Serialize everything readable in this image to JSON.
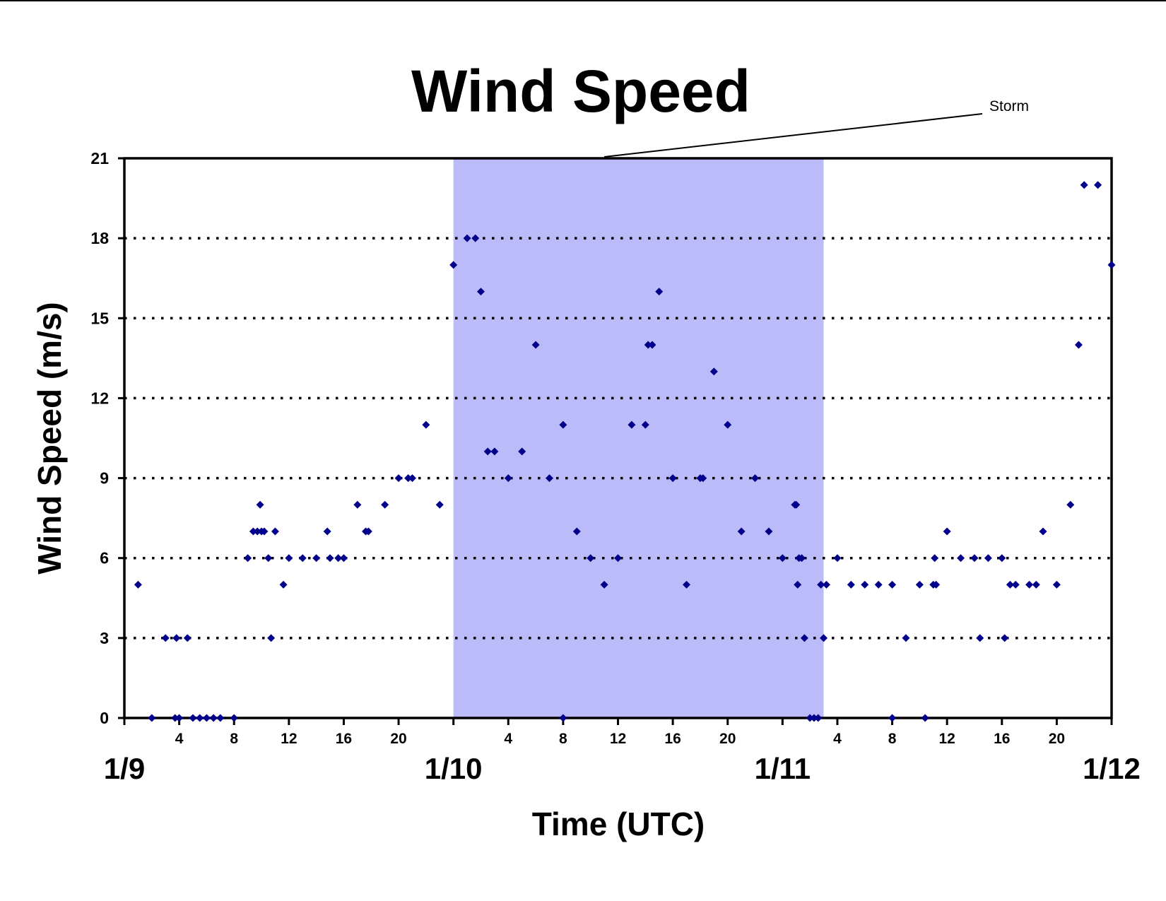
{
  "chart_data": {
    "type": "scatter",
    "title": "Wind Speed",
    "xlabel": "Time (UTC)",
    "ylabel": "Wind Speed (m/s)",
    "xlim": [
      0,
      72
    ],
    "ylim": [
      0,
      21
    ],
    "y_ticks": [
      0,
      3,
      6,
      9,
      12,
      15,
      18,
      21
    ],
    "y_tick_labels": [
      "0",
      "3",
      "6",
      "9",
      "12",
      "15",
      "18",
      "21"
    ],
    "grid": "horizontal dotted",
    "hour_ticks": [
      {
        "x": 4,
        "label": "4"
      },
      {
        "x": 8,
        "label": "8"
      },
      {
        "x": 12,
        "label": "12"
      },
      {
        "x": 16,
        "label": "16"
      },
      {
        "x": 20,
        "label": "20"
      },
      {
        "x": 28,
        "label": "4"
      },
      {
        "x": 32,
        "label": "8"
      },
      {
        "x": 36,
        "label": "12"
      },
      {
        "x": 40,
        "label": "16"
      },
      {
        "x": 44,
        "label": "20"
      },
      {
        "x": 52,
        "label": "4"
      },
      {
        "x": 56,
        "label": "8"
      },
      {
        "x": 60,
        "label": "12"
      },
      {
        "x": 64,
        "label": "16"
      },
      {
        "x": 68,
        "label": "20"
      }
    ],
    "date_ticks": [
      {
        "x": 0,
        "label": "1/9"
      },
      {
        "x": 24,
        "label": "1/10"
      },
      {
        "x": 48,
        "label": "1/11"
      },
      {
        "x": 72,
        "label": "1/12"
      }
    ],
    "shaded_region": {
      "x_start": 24,
      "x_end": 51,
      "color": "#bbbbf9",
      "label": "Storm"
    },
    "marker_color": "#00008b",
    "series": [
      {
        "points": [
          [
            1,
            5
          ],
          [
            2,
            0
          ],
          [
            3,
            3
          ],
          [
            3.7,
            0
          ],
          [
            3.8,
            3
          ],
          [
            4,
            0
          ],
          [
            4.6,
            3
          ],
          [
            5,
            0
          ],
          [
            5.5,
            0
          ],
          [
            6,
            0
          ],
          [
            6.5,
            0
          ],
          [
            7,
            0
          ],
          [
            8,
            0
          ],
          [
            9,
            6
          ],
          [
            9.4,
            7
          ],
          [
            9.7,
            7
          ],
          [
            9.9,
            8
          ],
          [
            10,
            7
          ],
          [
            10.2,
            7
          ],
          [
            10.5,
            6
          ],
          [
            10.7,
            3
          ],
          [
            11,
            7
          ],
          [
            11.6,
            5
          ],
          [
            12,
            6
          ],
          [
            13,
            6
          ],
          [
            14,
            6
          ],
          [
            14.8,
            7
          ],
          [
            15,
            6
          ],
          [
            15.6,
            6
          ],
          [
            16,
            6
          ],
          [
            17,
            8
          ],
          [
            17.6,
            7
          ],
          [
            17.8,
            7
          ],
          [
            19,
            8
          ],
          [
            20,
            9
          ],
          [
            20.7,
            9
          ],
          [
            21,
            9
          ],
          [
            22,
            11
          ],
          [
            23,
            8
          ],
          [
            24,
            17
          ],
          [
            25,
            18
          ],
          [
            25.6,
            18
          ],
          [
            26,
            16
          ],
          [
            26.5,
            10
          ],
          [
            27,
            10
          ],
          [
            28,
            9
          ],
          [
            29,
            10
          ],
          [
            30,
            14
          ],
          [
            31,
            9
          ],
          [
            32,
            11
          ],
          [
            32,
            0
          ],
          [
            33,
            7
          ],
          [
            34,
            6
          ],
          [
            35,
            5
          ],
          [
            36,
            6
          ],
          [
            37,
            11
          ],
          [
            38,
            11
          ],
          [
            38.2,
            14
          ],
          [
            38.5,
            14
          ],
          [
            39,
            16
          ],
          [
            40,
            9
          ],
          [
            41,
            5
          ],
          [
            42,
            9
          ],
          [
            42.2,
            9
          ],
          [
            43,
            13
          ],
          [
            44,
            11
          ],
          [
            45,
            7
          ],
          [
            46,
            9
          ],
          [
            47,
            7
          ],
          [
            48,
            6
          ],
          [
            48.9,
            8
          ],
          [
            49,
            8
          ],
          [
            49.1,
            5
          ],
          [
            49.2,
            6
          ],
          [
            49.4,
            6
          ],
          [
            49.6,
            3
          ],
          [
            50,
            0
          ],
          [
            50.3,
            0
          ],
          [
            50.6,
            0
          ],
          [
            50.8,
            5
          ],
          [
            51,
            3
          ],
          [
            51.2,
            5
          ],
          [
            52,
            6
          ],
          [
            53,
            5
          ],
          [
            54,
            5
          ],
          [
            55,
            5
          ],
          [
            56,
            5
          ],
          [
            56,
            0
          ],
          [
            57,
            3
          ],
          [
            58,
            5
          ],
          [
            58.4,
            0
          ],
          [
            59,
            5
          ],
          [
            59.1,
            6
          ],
          [
            59.2,
            5
          ],
          [
            60,
            7
          ],
          [
            61,
            6
          ],
          [
            62,
            6
          ],
          [
            62.4,
            3
          ],
          [
            63,
            6
          ],
          [
            64,
            6
          ],
          [
            64.2,
            3
          ],
          [
            64.6,
            5
          ],
          [
            65,
            5
          ],
          [
            66,
            5
          ],
          [
            66.5,
            5
          ],
          [
            67,
            7
          ],
          [
            68,
            5
          ],
          [
            69,
            8
          ],
          [
            69.6,
            14
          ],
          [
            70,
            20
          ],
          [
            71,
            20
          ],
          [
            72,
            17
          ]
        ]
      }
    ]
  }
}
